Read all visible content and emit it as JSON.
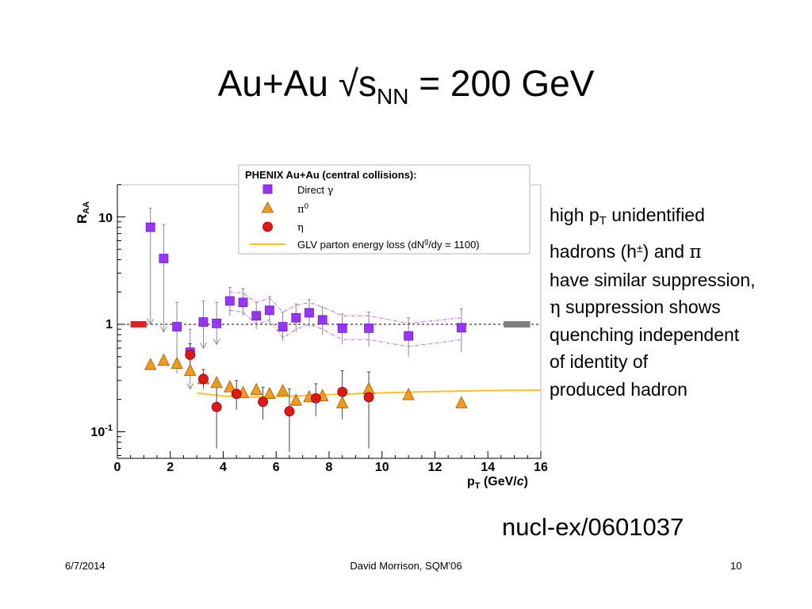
{
  "slide": {
    "title_main": "Au+Au √s",
    "title_sub": "NN",
    "title_tail": " = 200 GeV",
    "side_text": {
      "l1_a": "high p",
      "l1_sub": "T",
      "l1_b": " unidentified",
      "l2_a": "hadrons (h",
      "l2_sup": "±",
      "l2_b": ") and ",
      "l2_greek": "π",
      "l3": "have similar suppression,",
      "l4_greek": "η",
      "l4_b": " suppression shows",
      "l5": "quenching independent",
      "l6": "of identity of",
      "l7": "produced hadron"
    },
    "reference": "nucl-ex/0601037",
    "footer": {
      "date": "6/7/2014",
      "author": "David Morrison, SQM'06",
      "page": "10"
    }
  },
  "chart_data": {
    "type": "scatter",
    "title": "",
    "ylabel": "RAA",
    "ylabel_main": "R",
    "ylabel_sub": "AA",
    "xlabel_main": "p",
    "xlabel_sub": "T",
    "xlabel_unit_pre": " (GeV/",
    "xlabel_unit_c": "c",
    "xlabel_unit_post": ")",
    "xlim": [
      0,
      16
    ],
    "ylim": [
      0.05,
      20
    ],
    "yscale": "log",
    "x_ticks": [
      "0",
      "2",
      "4",
      "6",
      "8",
      "10",
      "12",
      "14",
      "16"
    ],
    "y_tick_10": "10",
    "y_tick_1": "1",
    "y_tick_01_base": "10",
    "y_tick_01_exp": "-1",
    "legend": {
      "header": "PHENIX Au+Au (central collisions):",
      "position": "top-right",
      "entries": [
        {
          "label_text": "Direct ",
          "label_greek": "γ"
        },
        {
          "label_text": "",
          "label_greek": "π",
          "label_sup": "0"
        },
        {
          "label_text": "",
          "label_greek": "η"
        },
        {
          "label_text": "GLV parton energy loss (dN",
          "label_sup": "g",
          "label_tail": "/dy = 1100)"
        }
      ]
    },
    "colors": {
      "direct_gamma": "#9933ff",
      "pi0": "#f39a1b",
      "eta": "#e41616",
      "glv": "#fbc02d",
      "norm_left": "#e02020",
      "norm_right": "#808080"
    },
    "series": [
      {
        "name": "Direct γ",
        "marker": "square",
        "points": [
          {
            "x": 1.25,
            "y": 8.0,
            "lo": 1.0,
            "hi": 12.0,
            "upper_limit": true
          },
          {
            "x": 1.75,
            "y": 4.1,
            "lo": 0.85,
            "hi": 8.5,
            "upper_limit": true
          },
          {
            "x": 2.25,
            "y": 0.95,
            "lo": 0.35,
            "hi": 1.6
          },
          {
            "x": 2.75,
            "y": 0.55,
            "lo": 0.25,
            "hi": 0.9,
            "upper_limit": true
          },
          {
            "x": 3.25,
            "y": 1.05,
            "lo": 0.6,
            "hi": 1.65,
            "upper_limit": true
          },
          {
            "x": 3.75,
            "y": 1.02,
            "lo": 0.65,
            "hi": 1.6,
            "upper_limit": true
          },
          {
            "x": 4.25,
            "y": 1.65,
            "lo": 1.2,
            "hi": 2.2
          },
          {
            "x": 4.75,
            "y": 1.6,
            "lo": 1.2,
            "hi": 2.15
          },
          {
            "x": 5.25,
            "y": 1.2,
            "lo": 0.9,
            "hi": 1.6
          },
          {
            "x": 5.75,
            "y": 1.35,
            "lo": 1.0,
            "hi": 1.8
          },
          {
            "x": 6.25,
            "y": 0.95,
            "lo": 0.7,
            "hi": 1.3
          },
          {
            "x": 6.75,
            "y": 1.15,
            "lo": 0.85,
            "hi": 1.55
          },
          {
            "x": 7.25,
            "y": 1.28,
            "lo": 0.95,
            "hi": 1.7
          },
          {
            "x": 7.75,
            "y": 1.1,
            "lo": 0.8,
            "hi": 1.45
          },
          {
            "x": 8.5,
            "y": 0.92,
            "lo": 0.65,
            "hi": 1.25
          },
          {
            "x": 9.5,
            "y": 0.92,
            "lo": 0.62,
            "hi": 1.3
          },
          {
            "x": 11.0,
            "y": 0.78,
            "lo": 0.5,
            "hi": 1.15
          },
          {
            "x": 13.0,
            "y": 0.93,
            "lo": 0.55,
            "hi": 1.4
          }
        ]
      },
      {
        "name": "π0",
        "marker": "triangle",
        "points": [
          {
            "x": 1.25,
            "y": 0.42
          },
          {
            "x": 1.75,
            "y": 0.46
          },
          {
            "x": 2.25,
            "y": 0.43
          },
          {
            "x": 2.75,
            "y": 0.37
          },
          {
            "x": 3.25,
            "y": 0.31
          },
          {
            "x": 3.75,
            "y": 0.285
          },
          {
            "x": 4.25,
            "y": 0.26
          },
          {
            "x": 4.75,
            "y": 0.23
          },
          {
            "x": 5.25,
            "y": 0.245
          },
          {
            "x": 5.75,
            "y": 0.225
          },
          {
            "x": 6.25,
            "y": 0.24
          },
          {
            "x": 6.75,
            "y": 0.195
          },
          {
            "x": 7.25,
            "y": 0.21
          },
          {
            "x": 7.75,
            "y": 0.215
          },
          {
            "x": 8.5,
            "y": 0.185
          },
          {
            "x": 9.5,
            "y": 0.25
          },
          {
            "x": 11.0,
            "y": 0.22
          },
          {
            "x": 13.0,
            "y": 0.185
          }
        ]
      },
      {
        "name": "η",
        "marker": "circle",
        "points": [
          {
            "x": 2.75,
            "y": 0.52,
            "lo": 0.4,
            "hi": 0.66
          },
          {
            "x": 3.25,
            "y": 0.31,
            "lo": 0.25,
            "hi": 0.38
          },
          {
            "x": 3.75,
            "y": 0.17,
            "lo": 0.07,
            "hi": 0.26
          },
          {
            "x": 4.5,
            "y": 0.225,
            "lo": 0.16,
            "hi": 0.3
          },
          {
            "x": 5.5,
            "y": 0.19,
            "lo": 0.13,
            "hi": 0.26
          },
          {
            "x": 6.5,
            "y": 0.155,
            "lo": 0.065,
            "hi": 0.25
          },
          {
            "x": 7.5,
            "y": 0.205,
            "lo": 0.14,
            "hi": 0.28
          },
          {
            "x": 8.5,
            "y": 0.235,
            "lo": 0.13,
            "hi": 0.37
          },
          {
            "x": 9.5,
            "y": 0.21,
            "lo": 0.07,
            "hi": 0.36
          }
        ]
      },
      {
        "name": "GLV parton energy loss (dNg/dy = 1100)",
        "marker": "curve",
        "points": [
          {
            "x": 3.0,
            "y": 0.23
          },
          {
            "x": 4.0,
            "y": 0.215
          },
          {
            "x": 5.0,
            "y": 0.21
          },
          {
            "x": 6.0,
            "y": 0.212
          },
          {
            "x": 8.0,
            "y": 0.222
          },
          {
            "x": 10.0,
            "y": 0.23
          },
          {
            "x": 12.0,
            "y": 0.237
          },
          {
            "x": 14.0,
            "y": 0.242
          },
          {
            "x": 16.0,
            "y": 0.244
          }
        ]
      }
    ],
    "gamma_band_upper": [
      {
        "x": 4.25,
        "y": 2.0
      },
      {
        "x": 4.75,
        "y": 1.95
      },
      {
        "x": 5.25,
        "y": 1.6
      },
      {
        "x": 5.75,
        "y": 1.75
      },
      {
        "x": 6.25,
        "y": 1.3
      },
      {
        "x": 6.75,
        "y": 1.5
      },
      {
        "x": 7.25,
        "y": 1.6
      },
      {
        "x": 7.75,
        "y": 1.45
      },
      {
        "x": 8.5,
        "y": 1.2
      },
      {
        "x": 9.5,
        "y": 1.2
      },
      {
        "x": 11.0,
        "y": 1.02
      },
      {
        "x": 13.0,
        "y": 1.15
      }
    ],
    "gamma_band_lower": [
      {
        "x": 4.25,
        "y": 1.35
      },
      {
        "x": 4.75,
        "y": 1.3
      },
      {
        "x": 5.25,
        "y": 1.0
      },
      {
        "x": 5.75,
        "y": 1.1
      },
      {
        "x": 6.25,
        "y": 0.75
      },
      {
        "x": 6.75,
        "y": 0.9
      },
      {
        "x": 7.25,
        "y": 1.0
      },
      {
        "x": 7.75,
        "y": 0.9
      },
      {
        "x": 8.5,
        "y": 0.72
      },
      {
        "x": 9.5,
        "y": 0.72
      },
      {
        "x": 11.0,
        "y": 0.62
      },
      {
        "x": 13.0,
        "y": 0.72
      }
    ],
    "reference_line_y": 1.0,
    "normalization_boxes": [
      {
        "x_from": 0.5,
        "x_to": 1.1,
        "y": 1.0,
        "color_key": "norm_left"
      },
      {
        "x_from": 14.6,
        "x_to": 15.6,
        "y": 1.0,
        "color_key": "norm_right"
      }
    ]
  }
}
